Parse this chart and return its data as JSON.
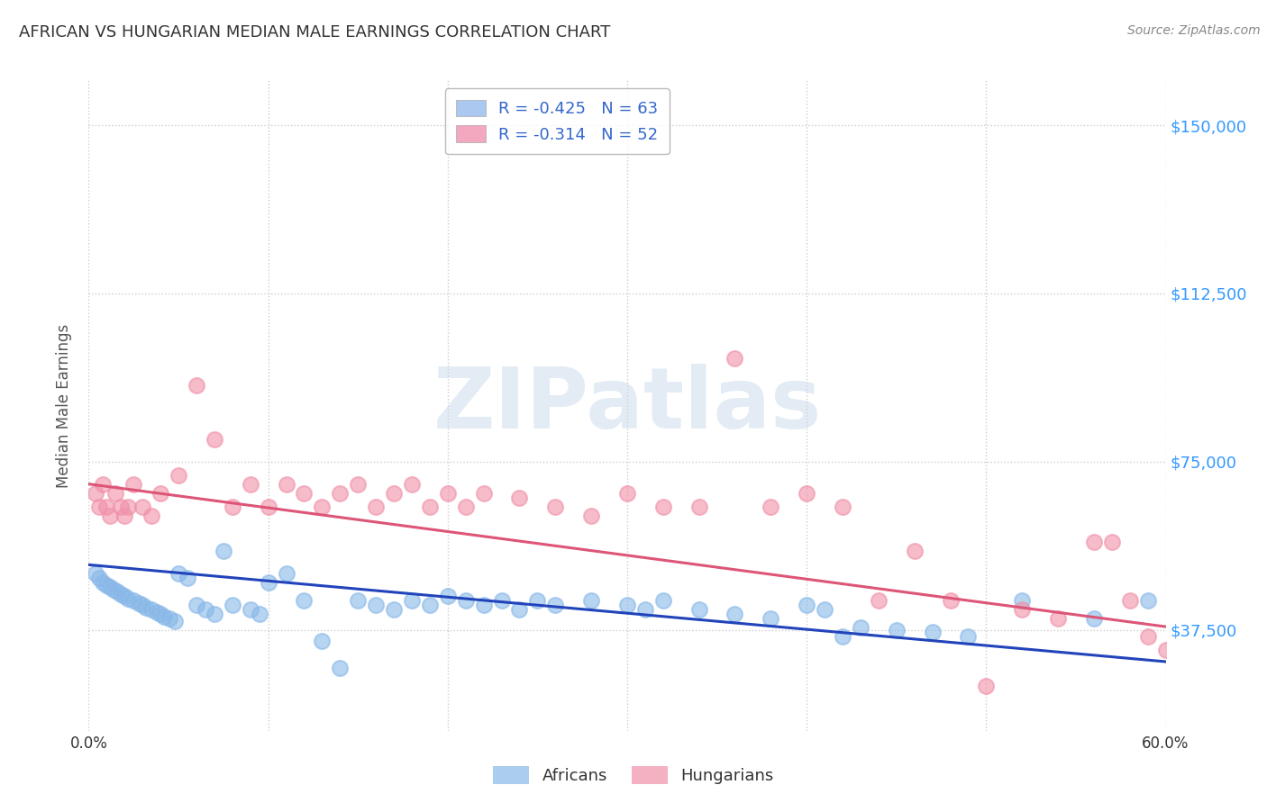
{
  "title": "AFRICAN VS HUNGARIAN MEDIAN MALE EARNINGS CORRELATION CHART",
  "source": "Source: ZipAtlas.com",
  "ylabel": "Median Male Earnings",
  "xlim": [
    0.0,
    0.6
  ],
  "ylim": [
    15000,
    160000
  ],
  "yticks": [
    37500,
    75000,
    112500,
    150000
  ],
  "ytick_labels": [
    "$37,500",
    "$75,000",
    "$112,500",
    "$150,000"
  ],
  "xticks": [
    0.0,
    0.1,
    0.2,
    0.3,
    0.4,
    0.5,
    0.6
  ],
  "xtick_labels": [
    "0.0%",
    "",
    "",
    "",
    "",
    "",
    "60.0%"
  ],
  "legend_entries": [
    {
      "label": "R = -0.425   N = 63",
      "color": "#aac8f0"
    },
    {
      "label": "R = -0.314   N = 52",
      "color": "#f4a8c0"
    }
  ],
  "legend_bottom": [
    "Africans",
    "Hungarians"
  ],
  "african_color": "#88b8e8",
  "hungarian_color": "#f090a8",
  "trend_african_color": "#2244bb",
  "trend_hungarian_color": "#dd5577",
  "watermark_text": "ZIPatlas",
  "africans_x": [
    0.004,
    0.006,
    0.008,
    0.01,
    0.012,
    0.014,
    0.016,
    0.018,
    0.02,
    0.022,
    0.025,
    0.028,
    0.03,
    0.032,
    0.035,
    0.038,
    0.04,
    0.042,
    0.045,
    0.048,
    0.05,
    0.055,
    0.06,
    0.065,
    0.07,
    0.075,
    0.08,
    0.09,
    0.095,
    0.1,
    0.11,
    0.12,
    0.13,
    0.14,
    0.15,
    0.16,
    0.17,
    0.18,
    0.19,
    0.2,
    0.21,
    0.22,
    0.23,
    0.24,
    0.25,
    0.26,
    0.28,
    0.3,
    0.31,
    0.32,
    0.34,
    0.36,
    0.38,
    0.4,
    0.41,
    0.42,
    0.43,
    0.45,
    0.47,
    0.49,
    0.52,
    0.56,
    0.59
  ],
  "africans_y": [
    50000,
    49000,
    48000,
    47500,
    47000,
    46500,
    46000,
    45500,
    45000,
    44500,
    44000,
    43500,
    43000,
    42500,
    42000,
    41500,
    41000,
    40500,
    40000,
    39500,
    50000,
    49000,
    43000,
    42000,
    41000,
    55000,
    43000,
    42000,
    41000,
    48000,
    50000,
    44000,
    35000,
    29000,
    44000,
    43000,
    42000,
    44000,
    43000,
    45000,
    44000,
    43000,
    44000,
    42000,
    44000,
    43000,
    44000,
    43000,
    42000,
    44000,
    42000,
    41000,
    40000,
    43000,
    42000,
    36000,
    38000,
    37500,
    37000,
    36000,
    44000,
    40000,
    44000
  ],
  "hungarians_x": [
    0.004,
    0.006,
    0.008,
    0.01,
    0.012,
    0.015,
    0.018,
    0.02,
    0.022,
    0.025,
    0.03,
    0.035,
    0.04,
    0.05,
    0.06,
    0.07,
    0.08,
    0.09,
    0.1,
    0.11,
    0.12,
    0.13,
    0.14,
    0.15,
    0.16,
    0.17,
    0.18,
    0.19,
    0.2,
    0.21,
    0.22,
    0.24,
    0.26,
    0.28,
    0.3,
    0.32,
    0.34,
    0.36,
    0.38,
    0.4,
    0.42,
    0.44,
    0.46,
    0.48,
    0.5,
    0.52,
    0.54,
    0.56,
    0.57,
    0.58,
    0.59,
    0.6
  ],
  "hungarians_y": [
    68000,
    65000,
    70000,
    65000,
    63000,
    68000,
    65000,
    63000,
    65000,
    70000,
    65000,
    63000,
    68000,
    72000,
    92000,
    80000,
    65000,
    70000,
    65000,
    70000,
    68000,
    65000,
    68000,
    70000,
    65000,
    68000,
    70000,
    65000,
    68000,
    65000,
    68000,
    67000,
    65000,
    63000,
    68000,
    65000,
    65000,
    98000,
    65000,
    68000,
    65000,
    44000,
    55000,
    44000,
    25000,
    42000,
    40000,
    57000,
    57000,
    44000,
    36000,
    33000
  ]
}
